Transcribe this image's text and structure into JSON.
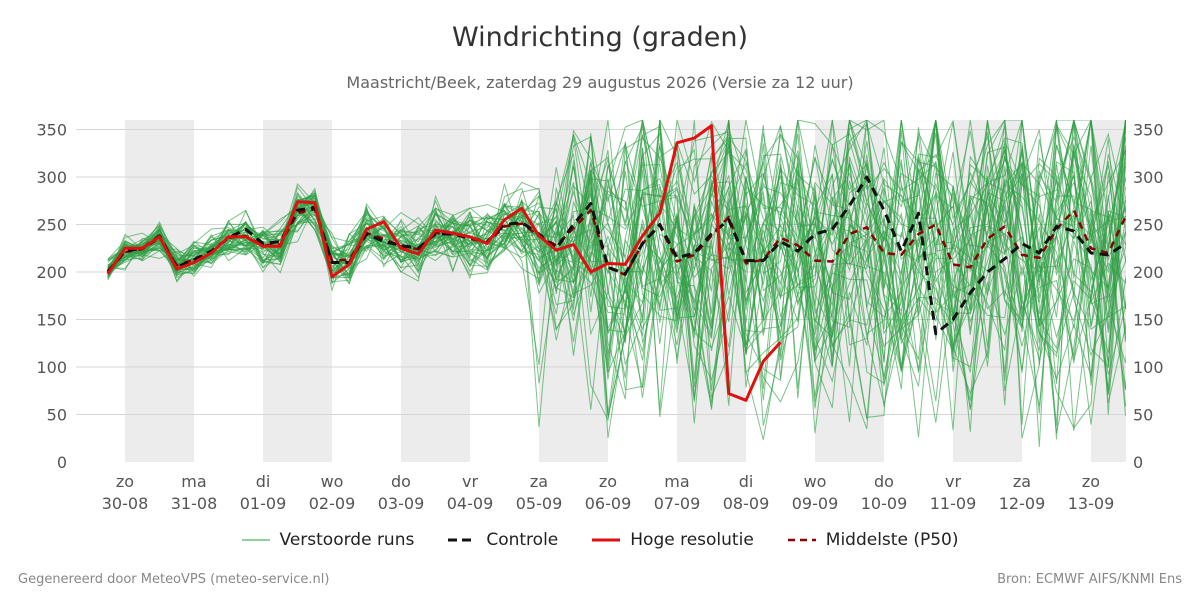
{
  "chart_data": {
    "type": "line",
    "title": "Windrichting (graden)",
    "subtitle": "Maastricht/Beek, zaterdag 29 augustus 2026 (Versie za 12 uur)",
    "ylim": [
      0,
      360
    ],
    "yticks": [
      0,
      50,
      100,
      150,
      200,
      250,
      300,
      350
    ],
    "xlim": [
      0,
      15
    ],
    "x_tick_days": [
      "zo",
      "ma",
      "di",
      "wo",
      "do",
      "vr",
      "za",
      "zo",
      "ma",
      "di",
      "wo",
      "do",
      "vr",
      "za",
      "zo"
    ],
    "x_tick_dates": [
      "30-08",
      "31-08",
      "01-09",
      "02-09",
      "03-09",
      "04-09",
      "05-09",
      "06-09",
      "07-09",
      "08-09",
      "09-09",
      "10-09",
      "11-09",
      "12-09",
      "13-09"
    ],
    "shaded_days": [
      [
        0,
        1
      ],
      [
        2,
        3
      ],
      [
        4,
        5
      ],
      [
        6,
        7
      ],
      [
        8,
        9
      ],
      [
        10,
        11
      ],
      [
        12,
        13
      ],
      [
        14,
        15
      ]
    ],
    "legend": {
      "ensemble": "Verstoorde runs",
      "control": "Controle",
      "hires": "Hoge resolutie",
      "median": "Middelste (P50)"
    },
    "colors": {
      "ensemble": "#2e9e44",
      "control": "#111111",
      "hires": "#e01010",
      "median": "#8b0000",
      "shade": "#ececec",
      "grid": "#d6d6d6"
    },
    "series": [
      {
        "name": "Hoge resolutie",
        "x": [
          -0.25,
          0,
          0.25,
          0.5,
          0.75,
          1,
          1.25,
          1.5,
          1.75,
          2,
          2.25,
          2.5,
          2.75,
          3,
          3.25,
          3.5,
          3.75,
          4,
          4.25,
          4.5,
          4.75,
          5,
          5.25,
          5.5,
          5.75,
          6,
          6.25,
          6.5,
          6.75,
          7,
          7.25,
          7.5,
          7.75,
          8,
          8.25,
          8.5,
          8.75,
          9,
          9.25,
          9.5
        ],
        "values": [
          198,
          225,
          225,
          237,
          203,
          210,
          220,
          237,
          237,
          227,
          227,
          274,
          273,
          195,
          208,
          245,
          253,
          225,
          219,
          244,
          241,
          237,
          230,
          255,
          267,
          238,
          223,
          229,
          200,
          209,
          208,
          238,
          262,
          336,
          341,
          354,
          72,
          65,
          106,
          126
        ]
      },
      {
        "name": "Controle",
        "x": [
          -0.25,
          0,
          0.25,
          0.5,
          0.75,
          1,
          1.25,
          1.5,
          1.75,
          2,
          2.25,
          2.5,
          2.75,
          3,
          3.25,
          3.5,
          3.75,
          4,
          4.25,
          4.5,
          4.75,
          5,
          5.25,
          5.5,
          5.75,
          6,
          6.25,
          6.5,
          6.75,
          7,
          7.25,
          7.5,
          7.75,
          8,
          8.25,
          8.5,
          8.75,
          9,
          9.25,
          9.5,
          9.75,
          10,
          10.25,
          10.5,
          10.75,
          11,
          11.25,
          11.5,
          11.75,
          12,
          12.25,
          12.5,
          12.75,
          13,
          13.25,
          13.5,
          13.75,
          14,
          14.25,
          14.5
        ],
        "values": [
          200,
          222,
          225,
          238,
          205,
          213,
          222,
          236,
          245,
          230,
          232,
          265,
          268,
          210,
          210,
          240,
          232,
          228,
          225,
          240,
          240,
          236,
          232,
          250,
          252,
          240,
          225,
          250,
          272,
          205,
          198,
          230,
          250,
          215,
          220,
          240,
          255,
          212,
          212,
          232,
          222,
          240,
          245,
          270,
          300,
          265,
          222,
          262,
          135,
          150,
          178,
          200,
          214,
          230,
          220,
          248,
          243,
          220,
          218,
          230
        ]
      },
      {
        "name": "Middelste (P50)",
        "x": [
          -0.25,
          0,
          0.25,
          0.5,
          0.75,
          1,
          1.25,
          1.5,
          1.75,
          2,
          2.25,
          2.5,
          2.75,
          3,
          3.25,
          3.5,
          3.75,
          4,
          4.25,
          4.5,
          4.75,
          5,
          5.25,
          5.5,
          5.75,
          6,
          6.25,
          6.5,
          6.75,
          7,
          7.25,
          7.5,
          7.75,
          8,
          8.25,
          8.5,
          8.75,
          9,
          9.25,
          9.5,
          9.75,
          10,
          10.25,
          10.5,
          10.75,
          11,
          11.25,
          11.5,
          11.75,
          12,
          12.25,
          12.5,
          12.75,
          13,
          13.25,
          13.5,
          13.75,
          14,
          14.25,
          14.5
        ],
        "values": [
          201,
          221,
          224,
          236,
          207,
          213,
          221,
          236,
          238,
          228,
          229,
          262,
          266,
          212,
          213,
          241,
          235,
          227,
          224,
          241,
          240,
          235,
          231,
          248,
          251,
          238,
          228,
          246,
          265,
          205,
          197,
          230,
          249,
          211,
          218,
          238,
          258,
          209,
          213,
          236,
          228,
          212,
          211,
          240,
          247,
          220,
          218,
          240,
          250,
          208,
          205,
          235,
          248,
          218,
          215,
          245,
          265,
          225,
          220,
          258
        ]
      }
    ]
  },
  "footer": {
    "left": "Gegenereerd door MeteoVPS (meteo-service.nl)",
    "right": "Bron: ECMWF AIFS/KNMI Ens"
  }
}
